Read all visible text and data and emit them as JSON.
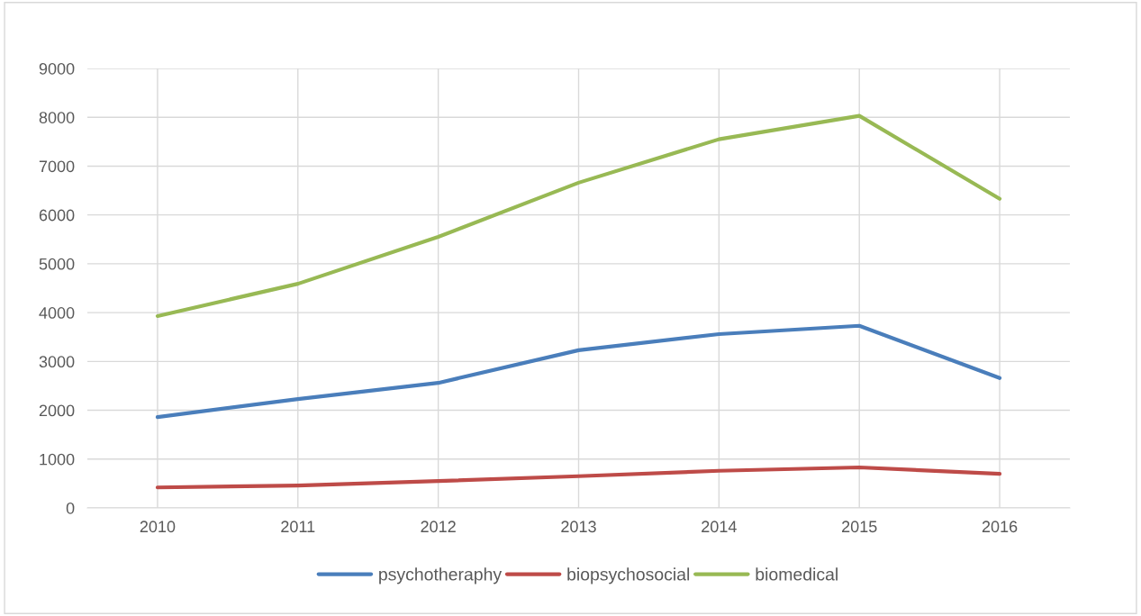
{
  "chart_data": {
    "type": "line",
    "categories": [
      "2010",
      "2011",
      "2012",
      "2013",
      "2014",
      "2015",
      "2016"
    ],
    "series": [
      {
        "name": "psychotheraphy",
        "color": "#4a7ebb",
        "values": [
          1860,
          2230,
          2560,
          3230,
          3560,
          3730,
          2660
        ]
      },
      {
        "name": "biopsychosocial",
        "color": "#be4b48",
        "values": [
          420,
          460,
          550,
          650,
          760,
          830,
          700
        ]
      },
      {
        "name": "biomedical",
        "color": "#98b954",
        "values": [
          3930,
          4590,
          5550,
          6660,
          7550,
          8030,
          6330
        ]
      }
    ],
    "ylim": [
      0,
      9000
    ],
    "yticks": [
      0,
      1000,
      2000,
      3000,
      4000,
      5000,
      6000,
      7000,
      8000,
      9000
    ],
    "grid": true,
    "legend": "bottom",
    "marker": "none",
    "line_style": "solid"
  }
}
